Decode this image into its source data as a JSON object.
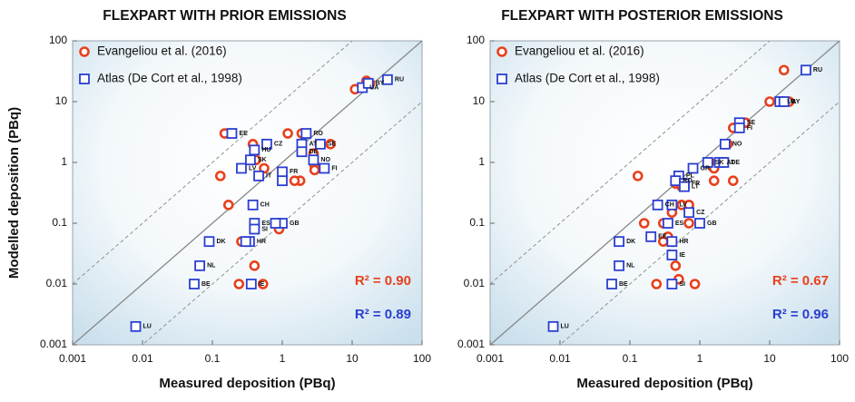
{
  "chart_data": [
    {
      "type": "scatter",
      "title": "FLEXPART WITH PRIOR EMISSIONS",
      "x_label": "Measured deposition (PBq)",
      "y_label": "Modelled deposition (PBq)",
      "log_scale": true,
      "xlim": [
        0.001,
        100
      ],
      "ylim": [
        0.001,
        100
      ],
      "xticks": [
        0.001,
        0.01,
        0.1,
        1,
        10,
        100
      ],
      "yticks": [
        0.001,
        0.01,
        0.1,
        1,
        10,
        100
      ],
      "series": [
        {
          "name": "Evangeliou et al. (2016)",
          "color": "#e8401c",
          "marker": "circle",
          "x": [
            16,
            18,
            11,
            0.15,
            0.38,
            1.2,
            1.9,
            4.9,
            2.8,
            2.9,
            2.9,
            0.55,
            1.8,
            0.13,
            0.17,
            0.26,
            0.9,
            0.4,
            0.24,
            0.53,
            0.008,
            0.42,
            1.5
          ],
          "values": [
            22,
            20,
            16,
            3,
            2,
            3,
            3,
            2,
            1.4,
            0.9,
            0.75,
            0.8,
            0.5,
            0.6,
            0.2,
            0.05,
            0.08,
            0.02,
            0.01,
            0.01,
            0.002,
            1.1,
            0.5
          ]
        },
        {
          "name": "Atlas (De Cort et al., 1998)",
          "color": "#2a3fd0",
          "marker": "square",
          "x": [
            32,
            14,
            17,
            0.19,
            2.2,
            0.6,
            0.4,
            1.9,
            1.9,
            3.5,
            2.8,
            0.35,
            0.26,
            1,
            0.46,
            4,
            0.09,
            0.38,
            0.4,
            0.4,
            1,
            0.34,
            0.066,
            0.055,
            0.008,
            0.36,
            1,
            0.8,
            0.3
          ],
          "values": [
            23,
            17,
            20,
            3,
            3,
            2,
            1.6,
            2,
            1.5,
            2,
            1.1,
            1.1,
            0.8,
            0.7,
            0.6,
            0.8,
            0.05,
            0.2,
            0.1,
            0.08,
            0.1,
            0.05,
            0.02,
            0.01,
            0.002,
            0.01,
            0.5,
            0.1,
            0.05
          ],
          "labels": [
            "RU",
            "UA",
            "BY",
            "EE",
            "RO",
            "CZ",
            "HU",
            "AT",
            "DE",
            "SE",
            "NO",
            "SK",
            "LV",
            "FR",
            "IT",
            "FI",
            "DK",
            "CH",
            "ES",
            "SI",
            "GB",
            "HR",
            "NL",
            "BE",
            "LU",
            "IE",
            null,
            null,
            null
          ]
        }
      ],
      "annotations": [
        {
          "text": "R² = 0.90",
          "color": "#e8401c"
        },
        {
          "text": "R² = 0.89",
          "color": "#2a3fd0"
        }
      ]
    },
    {
      "type": "scatter",
      "title": "FLEXPART WITH POSTERIOR EMISSIONS",
      "x_label": "Measured deposition (PBq)",
      "log_scale": true,
      "xlim": [
        0.001,
        100
      ],
      "ylim": [
        0.001,
        100
      ],
      "xticks": [
        0.001,
        0.01,
        0.1,
        1,
        10,
        100
      ],
      "yticks": [
        0.001,
        0.01,
        0.1,
        1,
        10,
        100
      ],
      "series": [
        {
          "name": "Evangeliou et al. (2016)",
          "color": "#e8401c",
          "marker": "circle",
          "x": [
            16,
            10,
            19,
            4.5,
            3,
            2.5,
            1.4,
            2.2,
            1.6,
            1.6,
            3,
            0.13,
            0.45,
            0.55,
            0.55,
            0.7,
            0.4,
            0.3,
            0.16,
            0.7,
            0.35,
            0.4,
            0.3,
            0.45,
            0.5,
            0.24,
            0.85,
            0.008
          ],
          "values": [
            33,
            10,
            10,
            4.5,
            3.7,
            2,
            1,
            1,
            0.8,
            0.5,
            0.5,
            0.6,
            0.45,
            0.4,
            0.2,
            0.2,
            0.15,
            0.1,
            0.1,
            0.1,
            0.06,
            0.05,
            0.05,
            0.02,
            0.012,
            0.01,
            0.01,
            0.002
          ]
        },
        {
          "name": "Atlas (De Cort et al., 1998)",
          "color": "#2a3fd0",
          "marker": "square",
          "x": [
            33,
            14,
            16,
            3.7,
            3.7,
            2.3,
            1.3,
            1.9,
            2.2,
            0.8,
            0.5,
            0.45,
            0.6,
            0.4,
            0.35,
            0.7,
            1,
            0.4,
            0.07,
            0.07,
            0.055,
            0.008,
            0.4,
            0.4,
            0.2,
            0.6,
            0.25
          ],
          "values": [
            33,
            10,
            10,
            4.5,
            3.7,
            2,
            1,
            1,
            1,
            0.8,
            0.6,
            0.5,
            0.45,
            0.2,
            0.1,
            0.15,
            0.1,
            0.05,
            0.05,
            0.02,
            0.01,
            0.002,
            0.03,
            0.01,
            0.06,
            0.4,
            0.2
          ],
          "labels": [
            "RU",
            "UA",
            "BY",
            "SE",
            "FI",
            "NO",
            "SK",
            "AT",
            "DE",
            "GR",
            "PL",
            "RO",
            "FR",
            "LV",
            "ES",
            "CZ",
            "GB",
            "HR",
            "DK",
            "NL",
            "BE",
            "LU",
            "IE",
            "SI",
            "EE",
            "LT",
            "CH"
          ]
        }
      ],
      "annotations": [
        {
          "text": "R² = 0.67",
          "color": "#e8401c"
        },
        {
          "text": "R² = 0.96",
          "color": "#2a3fd0"
        }
      ]
    }
  ]
}
